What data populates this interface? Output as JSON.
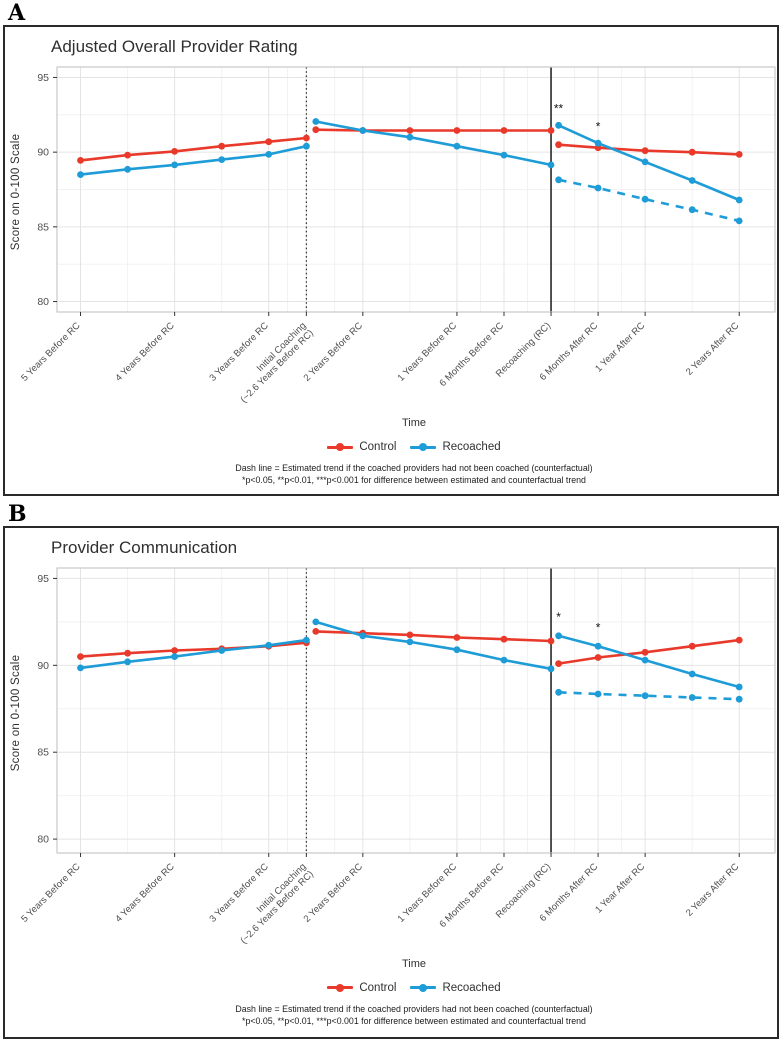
{
  "footnote": {
    "line1": "Dash line = Estimated trend if the coached providers had not been coached (counterfactual)",
    "line2": "*p<0.05, **p<0.01, ***p<0.001 for difference between estimated and counterfactual trend"
  },
  "colors": {
    "control": "#e8392b",
    "recoached": "#1e9cd7",
    "grid_major": "#e4e4e4",
    "grid_minor": "#f2f2f2",
    "panel_border": "#c8c8c8",
    "reference_line": "#3f3f3f"
  },
  "legend": [
    {
      "label": "Control",
      "color": "#e8392b"
    },
    {
      "label": "Recoached",
      "color": "#1e9cd7"
    }
  ],
  "chart_data": [
    {
      "type": "line",
      "panel_label": "A",
      "title": "Adjusted Overall Provider Rating",
      "xlabel": "Time",
      "ylabel": "Score on 0-100 Scale",
      "ylim": [
        79.3,
        95.7
      ],
      "yticks": [
        80,
        85,
        90,
        95
      ],
      "xlim": [
        -5.25,
        2.38
      ],
      "x_unit": "years relative to recoaching (RC)",
      "grid": true,
      "legend_position": "bottom",
      "xticks": [
        {
          "t": -5,
          "label": "5 Years Before RC"
        },
        {
          "t": -4,
          "label": "4 Years Before RC"
        },
        {
          "t": -3,
          "label": "3 Years Before RC"
        },
        {
          "t": -2.6,
          "label": "Initial Coaching",
          "label2": "(~2.6 Years Before RC)"
        },
        {
          "t": -2,
          "label": "2 Years Before RC"
        },
        {
          "t": -1,
          "label": "1 Years Before RC"
        },
        {
          "t": -0.5,
          "label": "6 Months Before RC"
        },
        {
          "t": 0,
          "label": "Recoaching (RC)"
        },
        {
          "t": 0.5,
          "label": "6 Months After RC"
        },
        {
          "t": 1,
          "label": "1 Year After RC"
        },
        {
          "t": 2,
          "label": "2 Years After RC"
        }
      ],
      "reference_lines": [
        {
          "t": -2.6,
          "style": "dotted",
          "meaning": "Initial Coaching"
        },
        {
          "t": 0,
          "style": "solid",
          "meaning": "Recoaching (RC)"
        }
      ],
      "series": [
        {
          "name": "Control",
          "color": "#e8392b",
          "dash": "solid",
          "segments": [
            [
              [
                -5,
                89.45
              ],
              [
                -4.5,
                89.8
              ],
              [
                -4,
                90.05
              ],
              [
                -3.5,
                90.4
              ],
              [
                -3,
                90.7
              ],
              [
                -2.6,
                90.95
              ]
            ],
            [
              [
                -2.5,
                91.5
              ],
              [
                -2,
                91.45
              ],
              [
                -1.5,
                91.45
              ],
              [
                -1,
                91.45
              ],
              [
                -0.5,
                91.45
              ],
              [
                0,
                91.45
              ]
            ],
            [
              [
                0.08,
                90.5
              ],
              [
                0.5,
                90.3
              ],
              [
                1,
                90.1
              ],
              [
                1.5,
                90.0
              ],
              [
                2,
                89.85
              ]
            ]
          ]
        },
        {
          "name": "Recoached",
          "color": "#1e9cd7",
          "dash": "solid",
          "segments": [
            [
              [
                -5,
                88.5
              ],
              [
                -4.5,
                88.85
              ],
              [
                -4,
                89.15
              ],
              [
                -3.5,
                89.5
              ],
              [
                -3,
                89.85
              ],
              [
                -2.6,
                90.4
              ]
            ],
            [
              [
                -2.5,
                92.05
              ],
              [
                -2,
                91.45
              ],
              [
                -1.5,
                91.0
              ],
              [
                -1,
                90.4
              ],
              [
                -0.5,
                89.8
              ],
              [
                0,
                89.15
              ]
            ],
            [
              [
                0.08,
                91.8
              ],
              [
                0.5,
                90.6
              ],
              [
                1,
                89.35
              ],
              [
                1.5,
                88.1
              ],
              [
                2,
                86.8
              ]
            ]
          ]
        },
        {
          "name": "Recoached counterfactual (dash)",
          "color": "#1e9cd7",
          "dash": "dashed",
          "segments": [
            [
              [
                0.08,
                88.15
              ],
              [
                0.5,
                87.6
              ],
              [
                1,
                86.85
              ],
              [
                1.5,
                86.15
              ],
              [
                2,
                85.4
              ]
            ]
          ]
        }
      ],
      "annotations": [
        {
          "t": 0.08,
          "v": 92.65,
          "text": "**"
        },
        {
          "t": 0.5,
          "v": 91.45,
          "text": "*"
        }
      ]
    },
    {
      "type": "line",
      "panel_label": "B",
      "title": "Provider Communication",
      "xlabel": "Time",
      "ylabel": "Score on 0-100 Scale",
      "ylim": [
        79.2,
        95.6
      ],
      "yticks": [
        80,
        85,
        90,
        95
      ],
      "xlim": [
        -5.25,
        2.38
      ],
      "x_unit": "years relative to recoaching (RC)",
      "grid": true,
      "legend_position": "bottom",
      "xticks": [
        {
          "t": -5,
          "label": "5 Years Before RC"
        },
        {
          "t": -4,
          "label": "4 Years Before RC"
        },
        {
          "t": -3,
          "label": "3 Years Before RC"
        },
        {
          "t": -2.6,
          "label": "Initial Coaching",
          "label2": "(~2.6 Years Before RC)"
        },
        {
          "t": -2,
          "label": "2 Years Before RC"
        },
        {
          "t": -1,
          "label": "1 Years Before RC"
        },
        {
          "t": -0.5,
          "label": "6 Months Before RC"
        },
        {
          "t": 0,
          "label": "Recoaching (RC)"
        },
        {
          "t": 0.5,
          "label": "6 Months After RC"
        },
        {
          "t": 1,
          "label": "1 Year After RC"
        },
        {
          "t": 2,
          "label": "2 Years After RC"
        }
      ],
      "reference_lines": [
        {
          "t": -2.6,
          "style": "dotted",
          "meaning": "Initial Coaching"
        },
        {
          "t": 0,
          "style": "solid",
          "meaning": "Recoaching (RC)"
        }
      ],
      "series": [
        {
          "name": "Control",
          "color": "#e8392b",
          "dash": "solid",
          "segments": [
            [
              [
                -5,
                90.5
              ],
              [
                -4.5,
                90.7
              ],
              [
                -4,
                90.85
              ],
              [
                -3.5,
                90.95
              ],
              [
                -3,
                91.1
              ],
              [
                -2.6,
                91.3
              ]
            ],
            [
              [
                -2.5,
                91.95
              ],
              [
                -2,
                91.85
              ],
              [
                -1.5,
                91.75
              ],
              [
                -1,
                91.6
              ],
              [
                -0.5,
                91.5
              ],
              [
                0,
                91.4
              ]
            ],
            [
              [
                0.08,
                90.1
              ],
              [
                0.5,
                90.45
              ],
              [
                1,
                90.75
              ],
              [
                1.5,
                91.1
              ],
              [
                2,
                91.45
              ]
            ]
          ]
        },
        {
          "name": "Recoached",
          "color": "#1e9cd7",
          "dash": "solid",
          "segments": [
            [
              [
                -5,
                89.85
              ],
              [
                -4.5,
                90.2
              ],
              [
                -4,
                90.5
              ],
              [
                -3.5,
                90.85
              ],
              [
                -3,
                91.15
              ],
              [
                -2.6,
                91.45
              ]
            ],
            [
              [
                -2.5,
                92.5
              ],
              [
                -2,
                91.7
              ],
              [
                -1.5,
                91.35
              ],
              [
                -1,
                90.9
              ],
              [
                -0.5,
                90.3
              ],
              [
                0,
                89.8
              ]
            ],
            [
              [
                0.08,
                91.7
              ],
              [
                0.5,
                91.1
              ],
              [
                1,
                90.3
              ],
              [
                1.5,
                89.5
              ],
              [
                2,
                88.75
              ]
            ]
          ]
        },
        {
          "name": "Recoached counterfactual (dash)",
          "color": "#1e9cd7",
          "dash": "dashed",
          "segments": [
            [
              [
                0.08,
                88.45
              ],
              [
                0.5,
                88.35
              ],
              [
                1,
                88.25
              ],
              [
                1.5,
                88.15
              ],
              [
                2,
                88.05
              ]
            ]
          ]
        }
      ],
      "annotations": [
        {
          "t": 0.08,
          "v": 92.55,
          "text": "*"
        },
        {
          "t": 0.5,
          "v": 91.95,
          "text": "*"
        }
      ]
    }
  ]
}
